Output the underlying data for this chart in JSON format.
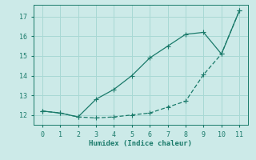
{
  "x": [
    0,
    1,
    2,
    3,
    4,
    5,
    6,
    7,
    8,
    9,
    10,
    11
  ],
  "y_line1": [
    12.2,
    12.1,
    11.9,
    12.8,
    13.3,
    14.0,
    14.9,
    15.5,
    16.1,
    16.2,
    15.1,
    17.3
  ],
  "y_line2": [
    12.2,
    12.1,
    11.9,
    11.85,
    11.9,
    12.0,
    12.1,
    12.4,
    12.7,
    14.05,
    15.1,
    17.3
  ],
  "line_color": "#1a7a6a",
  "bg_color": "#cceae8",
  "xlabel": "Humidex (Indice chaleur)",
  "xlim": [
    -0.5,
    11.5
  ],
  "ylim": [
    11.5,
    17.6
  ],
  "yticks": [
    12,
    13,
    14,
    15,
    16,
    17
  ],
  "xticks": [
    0,
    1,
    2,
    3,
    4,
    5,
    6,
    7,
    8,
    9,
    10,
    11
  ],
  "grid_color": "#a8d8d4",
  "markersize": 2.5,
  "linewidth": 0.9
}
